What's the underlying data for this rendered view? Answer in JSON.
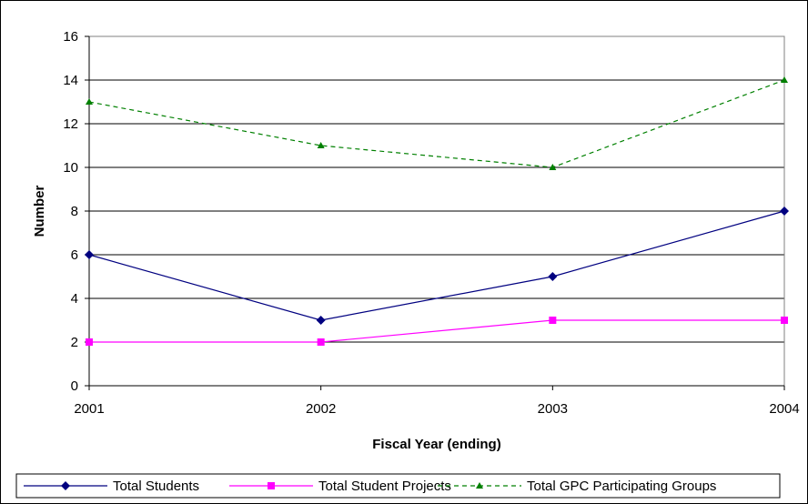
{
  "chart_data": {
    "type": "line",
    "title": "",
    "xlabel": "Fiscal Year (ending)",
    "ylabel": "Number",
    "categories": [
      "2001",
      "2002",
      "2003",
      "2004"
    ],
    "ylim": [
      0,
      16
    ],
    "yticks": [
      0,
      2,
      4,
      6,
      8,
      10,
      12,
      14,
      16
    ],
    "grid": "horizontal",
    "legend_position": "bottom",
    "series": [
      {
        "name": "Total Students",
        "values": [
          6,
          3,
          5,
          8
        ],
        "color": "#000080",
        "marker": "diamond",
        "dash": "solid"
      },
      {
        "name": "Total Student Projects",
        "values": [
          2,
          2,
          3,
          3
        ],
        "color": "#FF00FF",
        "marker": "square",
        "dash": "solid"
      },
      {
        "name": "Total GPC Participating Groups",
        "values": [
          13,
          11,
          10,
          14
        ],
        "color": "#008000",
        "marker": "triangle",
        "dash": "dashed"
      }
    ]
  }
}
